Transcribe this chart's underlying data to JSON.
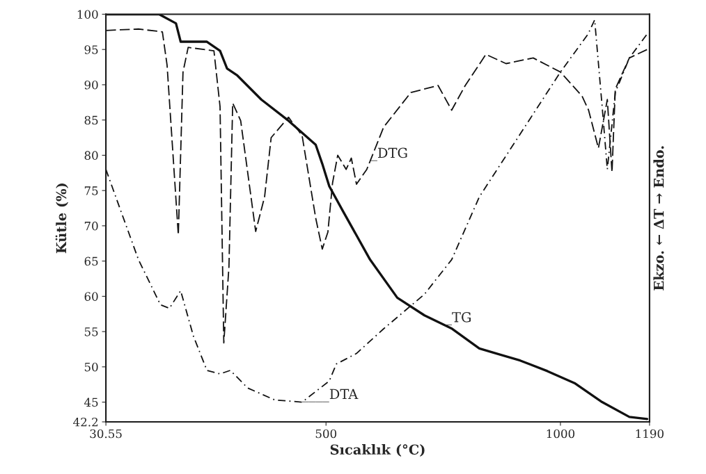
{
  "chart_data": {
    "type": "line",
    "xlabel": "Sıcaklık (°C)",
    "ylabel": "Kütle (%)",
    "y2label": "Ekzo. ← ΔT → Endo.",
    "xlim": [
      30.55,
      1190
    ],
    "xticks": [
      30.55,
      500,
      1000,
      1190
    ],
    "ylim": [
      42.2,
      100
    ],
    "yticks": [
      42.2,
      45,
      50,
      55,
      60,
      65,
      70,
      75,
      80,
      85,
      90,
      95,
      100
    ],
    "grid": false,
    "legend": false,
    "series": [
      {
        "color": "#111111",
        "line_style": "solid",
        "x": [
          30.55,
          144,
          180,
          190,
          246,
          274,
          289,
          311,
          362,
          420,
          478,
          492,
          507,
          536,
          594,
          652,
          710,
          769,
          827,
          914,
          972,
          1030,
          1089,
          1147,
          1185
        ],
        "values": [
          100,
          100,
          98.7,
          96.1,
          96.1,
          94.8,
          92.3,
          91.3,
          87.9,
          84.9,
          81.5,
          78.8,
          75.6,
          72.1,
          65.2,
          59.8,
          57.3,
          55.4,
          52.6,
          50.9,
          49.4,
          47.7,
          45.0,
          42.9,
          42.6
        ]
      },
      {
        "color": "#111111",
        "line_style": "dashed",
        "x": [
          30.55,
          100,
          151,
          161,
          185,
          195,
          206,
          261,
          274,
          282,
          293,
          301,
          318,
          350,
          369,
          383,
          420,
          449,
          478,
          492,
          504,
          514,
          525,
          543,
          554,
          565,
          587,
          623,
          681,
          739,
          768,
          797,
          841,
          884,
          942,
          1000,
          1046,
          1060,
          1081,
          1100,
          1110,
          1117,
          1147,
          1185
        ],
        "values": [
          97.7,
          97.9,
          97.5,
          92.8,
          68.7,
          91.8,
          95.3,
          94.8,
          86.9,
          53.4,
          64.2,
          87.4,
          84.9,
          69.2,
          74.1,
          82.5,
          85.4,
          82.8,
          71.1,
          66.7,
          69.1,
          76.1,
          80,
          78.0,
          79.6,
          75.9,
          78,
          84,
          88.9,
          89.9,
          86.4,
          89.9,
          94.3,
          93.0,
          93.8,
          91.8,
          88.4,
          86.4,
          81.0,
          87.9,
          77.6,
          89.4,
          93.8,
          95.0
        ]
      },
      {
        "color": "#111111",
        "line_style": "dotted",
        "x": [
          30.55,
          57,
          100,
          147,
          166,
          190,
          217,
          246,
          274,
          296,
          333,
          391,
          449,
          507,
          522,
          565,
          623,
          710,
          768,
          827,
          914,
          1000,
          1059,
          1073,
          1089,
          1100,
          1117,
          1147,
          1185
        ],
        "values": [
          78,
          73.1,
          65.2,
          58.8,
          58.3,
          60.8,
          54.4,
          49.5,
          49.0,
          49.5,
          47.0,
          45.3,
          45.0,
          48.0,
          50.4,
          51.9,
          55.4,
          60.3,
          65.2,
          74.1,
          83.0,
          91.8,
          97.2,
          99.2,
          86.9,
          78.0,
          88.9,
          93.8,
          97.2
        ]
      }
    ],
    "annotations": [
      {
        "text": "_TG",
        "x": 754,
        "y": 55.9
      },
      {
        "text": "_DTG",
        "x": 595,
        "y": 79.2
      },
      {
        "text": "____DTA",
        "x": 449,
        "y": 45.0
      }
    ]
  }
}
